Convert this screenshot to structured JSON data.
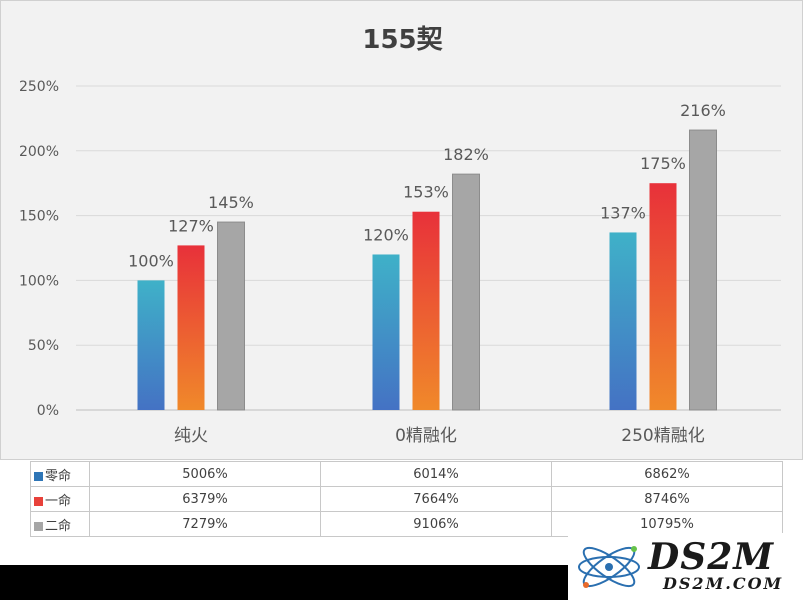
{
  "chart_data": {
    "type": "bar",
    "title": "155契",
    "categories": [
      "纯火",
      "0精融化",
      "250精融化"
    ],
    "series": [
      {
        "name": "零命",
        "values": [
          100,
          120,
          137
        ],
        "data_labels": [
          "100%",
          "120%",
          "137%"
        ],
        "color_top": "#3fb1c8",
        "color_bottom": "#4472c4"
      },
      {
        "name": "一命",
        "values": [
          127,
          153,
          175
        ],
        "data_labels": [
          "127%",
          "153%",
          "175%"
        ],
        "color_top": "#e8313a",
        "color_bottom": "#f0892a"
      },
      {
        "name": "二命",
        "values": [
          145,
          182,
          216
        ],
        "data_labels": [
          "145%",
          "182%",
          "216%"
        ],
        "color_top": "#a6a6a6",
        "color_bottom": "#a6a6a6"
      }
    ],
    "ylim": [
      0,
      250
    ],
    "yticks": [
      0,
      50,
      100,
      150,
      200,
      250
    ],
    "ytick_labels": [
      "0%",
      "50%",
      "100%",
      "150%",
      "200%",
      "250%"
    ],
    "grid": true
  },
  "table": {
    "rows": [
      {
        "label": "零命",
        "color": "#2e75b6",
        "values": [
          "5006%",
          "6014%",
          "6862%"
        ]
      },
      {
        "label": "一命",
        "color": "#e8413a",
        "values": [
          "6379%",
          "7664%",
          "8746%"
        ]
      },
      {
        "label": "二命",
        "color": "#a6a6a6",
        "values": [
          "7279%",
          "9106%",
          "10795%"
        ]
      }
    ]
  },
  "watermark": {
    "main": "DS2M",
    "sub": "DS2M.COM"
  }
}
